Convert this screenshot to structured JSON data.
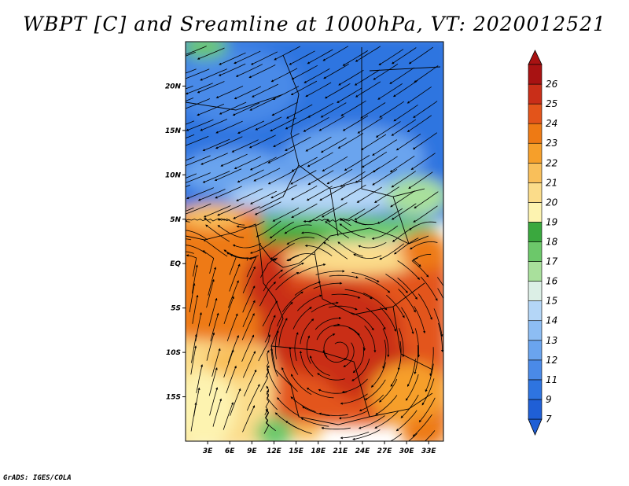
{
  "title": "WBPT [C] and Sreamline at 1000hPa, VT: 2020012521",
  "credit": "GrADS: IGES/COLA",
  "map": {
    "lon_range": [
      0,
      35
    ],
    "lat_range": [
      -20,
      25
    ],
    "lat_ticks": [
      {
        "value": 20,
        "label": "20N"
      },
      {
        "value": 15,
        "label": "15N"
      },
      {
        "value": 10,
        "label": "10N"
      },
      {
        "value": 5,
        "label": "5N"
      },
      {
        "value": 0,
        "label": "EQ"
      },
      {
        "value": -5,
        "label": "5S"
      },
      {
        "value": -10,
        "label": "10S"
      },
      {
        "value": -15,
        "label": "15S"
      }
    ],
    "lon_ticks": [
      {
        "value": 3,
        "label": "3E"
      },
      {
        "value": 6,
        "label": "6E"
      },
      {
        "value": 9,
        "label": "9E"
      },
      {
        "value": 12,
        "label": "12E"
      },
      {
        "value": 15,
        "label": "15E"
      },
      {
        "value": 18,
        "label": "18E"
      },
      {
        "value": 21,
        "label": "21E"
      },
      {
        "value": 24,
        "label": "24E"
      },
      {
        "value": 27,
        "label": "27E"
      },
      {
        "value": 30,
        "label": "30E"
      },
      {
        "value": 33,
        "label": "33E"
      }
    ]
  },
  "colorbar": {
    "levels": [
      {
        "label": "7",
        "color": "#1f5fd6"
      },
      {
        "label": "9",
        "color": "#2e74e0"
      },
      {
        "label": "11",
        "color": "#4a8ae8"
      },
      {
        "label": "12",
        "color": "#6aa4ee"
      },
      {
        "label": "13",
        "color": "#8dbdf3"
      },
      {
        "label": "14",
        "color": "#b4d6f7"
      },
      {
        "label": "15",
        "color": "#dcefe6"
      },
      {
        "label": "16",
        "color": "#a9e09c"
      },
      {
        "label": "17",
        "color": "#6cc86a"
      },
      {
        "label": "18",
        "color": "#3aa83e"
      },
      {
        "label": "19",
        "color": "#fdf3b0"
      },
      {
        "label": "20",
        "color": "#fbdc8a"
      },
      {
        "label": "21",
        "color": "#f9bf5a"
      },
      {
        "label": "22",
        "color": "#f69f2a"
      },
      {
        "label": "23",
        "color": "#ee7a14"
      },
      {
        "label": "24",
        "color": "#e3541a"
      },
      {
        "label": "25",
        "color": "#c92e18"
      },
      {
        "label": "26",
        "color": "#a81212"
      }
    ],
    "under_color": "#1f5fd6",
    "over_color": "#a81212"
  }
}
